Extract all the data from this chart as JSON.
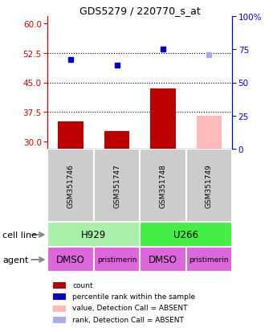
{
  "title": "GDS5279 / 220770_s_at",
  "samples": [
    "GSM351746",
    "GSM351747",
    "GSM351748",
    "GSM351749"
  ],
  "bar_values": [
    35.0,
    32.5,
    43.5,
    36.5
  ],
  "bar_colors": [
    "#bb0000",
    "#bb0000",
    "#bb0000",
    "#ffbbbb"
  ],
  "rank_values": [
    67.0,
    63.0,
    75.0,
    71.0
  ],
  "rank_colors": [
    "#0000cc",
    "#0000cc",
    "#0000cc",
    "#aaaaee"
  ],
  "ylim_left": [
    28,
    62
  ],
  "ylim_right": [
    0,
    100
  ],
  "yticks_left": [
    30,
    37.5,
    45,
    52.5,
    60
  ],
  "yticks_right": [
    0,
    25,
    50,
    75,
    100
  ],
  "hlines": [
    37.5,
    45,
    52.5
  ],
  "cell_line_groups": [
    {
      "label": "H929",
      "cols": [
        0,
        1
      ],
      "color": "#aaf0aa"
    },
    {
      "label": "U266",
      "cols": [
        2,
        3
      ],
      "color": "#44ee44"
    }
  ],
  "agent_labels": [
    "DMSO",
    "pristimerin",
    "DMSO",
    "pristimerin"
  ],
  "agent_color": "#dd66dd",
  "sample_box_color": "#cccccc",
  "left_axis_color": "#cc0000",
  "right_axis_color": "#0000cc",
  "legend_items": [
    {
      "color": "#bb0000",
      "label": "count"
    },
    {
      "color": "#0000cc",
      "label": "percentile rank within the sample"
    },
    {
      "color": "#ffbbbb",
      "label": "value, Detection Call = ABSENT"
    },
    {
      "color": "#aaaaee",
      "label": "rank, Detection Call = ABSENT"
    }
  ]
}
